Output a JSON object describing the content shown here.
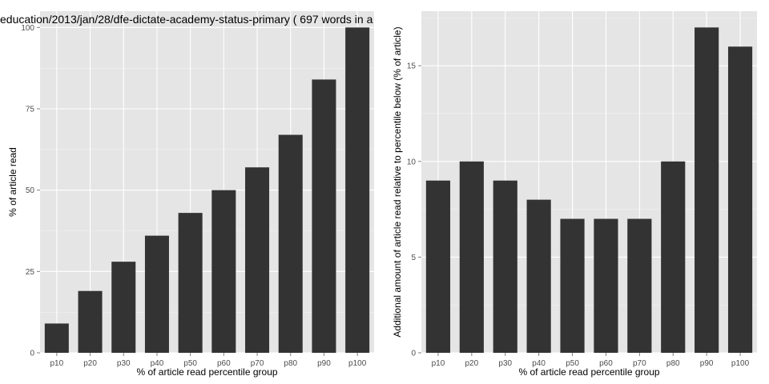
{
  "chart_data": [
    {
      "type": "bar",
      "title": "education/2013/jan/28/dfe-dictate-academy-status-primary ( 697 words in a",
      "xlabel": "% of article read percentile group",
      "ylabel": "% of article read",
      "categories": [
        "p10",
        "p20",
        "p30",
        "p40",
        "p50",
        "p60",
        "p70",
        "p80",
        "p90",
        "p100"
      ],
      "values": [
        9,
        19,
        28,
        36,
        43,
        50,
        57,
        67,
        84,
        100
      ],
      "ylim": [
        0,
        105
      ],
      "yticks": [
        "0",
        "25",
        "50",
        "75",
        "100"
      ],
      "grid": true,
      "bar_color": "#333333",
      "panel_color": "#e5e5e5"
    },
    {
      "type": "bar",
      "title": "",
      "xlabel": "% of article read percentile group",
      "ylabel": "Additional amount of article read relative to percentile below (% of article)",
      "categories": [
        "p10",
        "p20",
        "p30",
        "p40",
        "p50",
        "p60",
        "p70",
        "p80",
        "p90",
        "p100"
      ],
      "values": [
        9,
        10,
        9,
        8,
        7,
        7,
        7,
        10,
        17,
        16
      ],
      "ylim": [
        0,
        17.85
      ],
      "yticks": [
        "0",
        "5",
        "10",
        "15"
      ],
      "grid": true,
      "bar_color": "#333333",
      "panel_color": "#e5e5e5"
    }
  ]
}
